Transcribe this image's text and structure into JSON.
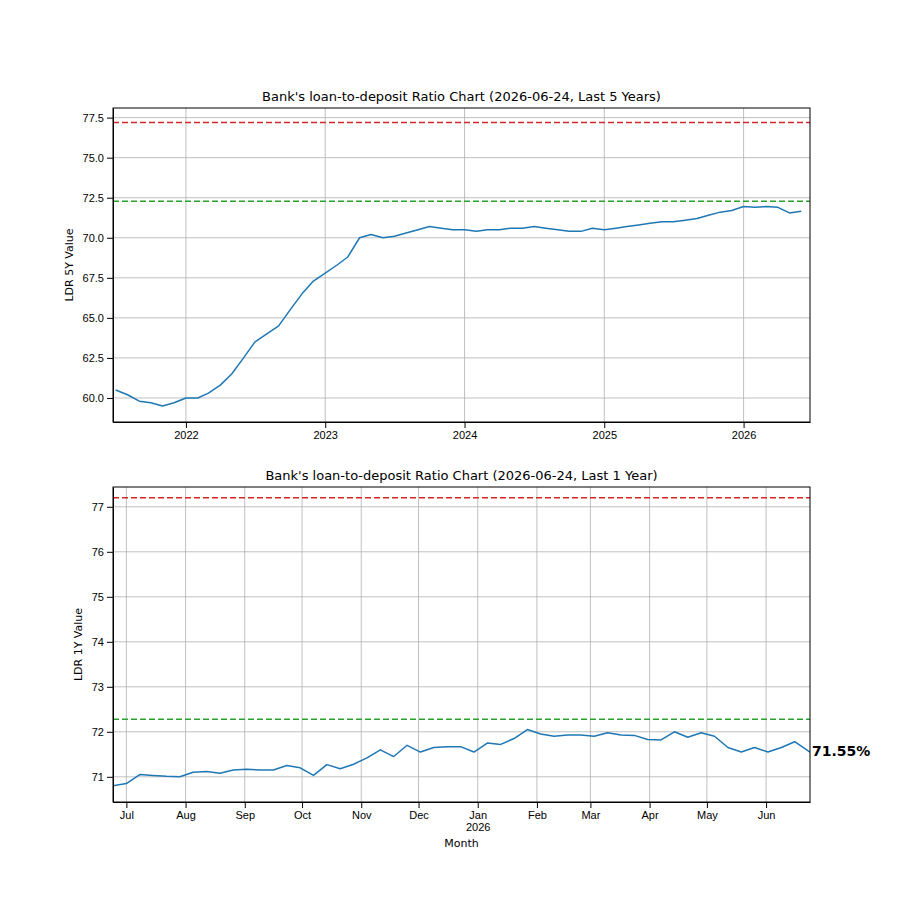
{
  "chart_data": [
    {
      "type": "line",
      "title": "Bank's loan-to-deposit Ratio Chart (2026-06-24, Last 5 Years)",
      "y_label": "LDR 5Y Value",
      "color": "#1f77b4",
      "grid": true,
      "xlim": [
        "2021-06-24",
        "2026-06-24"
      ],
      "ylim": [
        58.5,
        78.1
      ],
      "xticks": [
        {
          "value": "2022",
          "label": "2022"
        },
        {
          "value": "2023",
          "label": "2023"
        },
        {
          "value": "2024",
          "label": "2024"
        },
        {
          "value": "2025",
          "label": "2025"
        },
        {
          "value": "2026",
          "label": "2026"
        }
      ],
      "yticks": [
        {
          "value": 60,
          "label": "60.0"
        },
        62.5,
        {
          "value": 65,
          "label": "65.0"
        },
        67.5,
        {
          "value": 70,
          "label": "70.0"
        },
        72.5,
        {
          "value": 75,
          "label": "75.0"
        },
        77.5
      ],
      "hlines": [
        {
          "value": 77.2,
          "color": "#d62728",
          "line_style": "dashed"
        },
        {
          "value": 72.28,
          "color": "#2ca02c",
          "line_style": "dashed"
        }
      ],
      "x": [
        "2021-07",
        "2021-08",
        "2021-09",
        "2021-10",
        "2021-11",
        "2021-12",
        "2022-01",
        "2022-02",
        "2022-03",
        "2022-04",
        "2022-05",
        "2022-06",
        "2022-07",
        "2022-08",
        "2022-09",
        "2022-10",
        "2022-11",
        "2022-12",
        "2023-01",
        "2023-02",
        "2023-03",
        "2023-04",
        "2023-05",
        "2023-06",
        "2023-07",
        "2023-08",
        "2023-09",
        "2023-10",
        "2023-11",
        "2023-12",
        "2024-01",
        "2024-02",
        "2024-03",
        "2024-04",
        "2024-05",
        "2024-06",
        "2024-07",
        "2024-08",
        "2024-09",
        "2024-10",
        "2024-11",
        "2024-12",
        "2025-01",
        "2025-02",
        "2025-03",
        "2025-04",
        "2025-05",
        "2025-06",
        "2025-07",
        "2025-08",
        "2025-09",
        "2025-10",
        "2025-11",
        "2025-12",
        "2026-01",
        "2026-02",
        "2026-03",
        "2026-04",
        "2026-05",
        "2026-06"
      ],
      "values": [
        60.5,
        60.2,
        59.8,
        59.7,
        59.5,
        59.7,
        60.0,
        60.0,
        60.3,
        60.8,
        61.5,
        62.5,
        63.5,
        64.0,
        64.5,
        65.5,
        66.5,
        67.3,
        67.8,
        68.3,
        68.8,
        70.0,
        70.2,
        70.0,
        70.1,
        70.3,
        70.5,
        70.7,
        70.6,
        70.5,
        70.5,
        70.4,
        70.5,
        70.5,
        70.6,
        70.6,
        70.7,
        70.6,
        70.5,
        70.4,
        70.4,
        70.6,
        70.5,
        70.6,
        70.7,
        70.8,
        70.9,
        71.0,
        71.0,
        71.1,
        71.2,
        71.4,
        71.6,
        71.7,
        71.95,
        71.9,
        71.95,
        71.9,
        71.55,
        71.65
      ]
    },
    {
      "type": "line",
      "title": "Bank's loan-to-deposit Ratio Chart (2026-06-24, Last 1 Year)",
      "y_label": "LDR 1Y Value",
      "x_label": "Month",
      "color": "#1f77b4",
      "grid": true,
      "xlim": [
        "2025-06-24",
        "2026-06-24"
      ],
      "ylim": [
        70.44,
        77.44
      ],
      "xticks": [
        {
          "value": "2025-07",
          "label": "Jul"
        },
        {
          "value": "2025-08",
          "label": "Aug"
        },
        {
          "value": "2025-09",
          "label": "Sep"
        },
        {
          "value": "2025-10",
          "label": "Oct"
        },
        {
          "value": "2025-11",
          "label": "Nov"
        },
        {
          "value": "2025-12",
          "label": "Dec"
        },
        {
          "value": "2026-01",
          "label": "Jan\n2026"
        },
        {
          "value": "2026-02",
          "label": "Feb"
        },
        {
          "value": "2026-03",
          "label": "Mar"
        },
        {
          "value": "2026-04",
          "label": "Apr"
        },
        {
          "value": "2026-05",
          "label": "May"
        },
        {
          "value": "2026-06",
          "label": "Jun"
        }
      ],
      "yticks": [
        71,
        72,
        73,
        74,
        75,
        76,
        77
      ],
      "hlines": [
        {
          "value": 77.2,
          "color": "#d62728",
          "line_style": "dashed"
        },
        {
          "value": 72.28,
          "color": "#2ca02c",
          "line_style": "dashed"
        }
      ],
      "annotations": [
        {
          "text": "71.55%",
          "x": "2026-06-24",
          "y": 71.55
        }
      ],
      "x": [
        "2025-06-24",
        "2025-07-01",
        "2025-07-08",
        "2025-07-15",
        "2025-07-22",
        "2025-07-29",
        "2025-08-05",
        "2025-08-12",
        "2025-08-19",
        "2025-08-26",
        "2025-09-02",
        "2025-09-09",
        "2025-09-16",
        "2025-09-23",
        "2025-09-30",
        "2025-10-07",
        "2025-10-14",
        "2025-10-21",
        "2025-10-28",
        "2025-11-04",
        "2025-11-11",
        "2025-11-18",
        "2025-11-25",
        "2025-12-02",
        "2025-12-09",
        "2025-12-16",
        "2025-12-23",
        "2025-12-30",
        "2026-01-06",
        "2026-01-13",
        "2026-01-20",
        "2026-01-27",
        "2026-02-03",
        "2026-02-10",
        "2026-02-17",
        "2026-02-24",
        "2026-03-03",
        "2026-03-10",
        "2026-03-17",
        "2026-03-24",
        "2026-03-31",
        "2026-04-07",
        "2026-04-14",
        "2026-04-21",
        "2026-04-28",
        "2026-05-05",
        "2026-05-12",
        "2026-05-19",
        "2026-05-26",
        "2026-06-02",
        "2026-06-09",
        "2026-06-16",
        "2026-06-24"
      ],
      "values": [
        70.8,
        70.85,
        71.05,
        71.03,
        71.01,
        71.0,
        71.1,
        71.12,
        71.08,
        71.15,
        71.17,
        71.15,
        71.15,
        71.25,
        71.2,
        71.03,
        71.27,
        71.18,
        71.28,
        71.42,
        71.6,
        71.45,
        71.7,
        71.55,
        71.65,
        71.67,
        71.67,
        71.55,
        71.75,
        71.72,
        71.85,
        72.05,
        71.95,
        71.9,
        71.93,
        71.93,
        71.9,
        71.98,
        71.93,
        71.92,
        71.83,
        71.82,
        72.0,
        71.88,
        71.98,
        71.9,
        71.65,
        71.55,
        71.65,
        71.55,
        71.65,
        71.78,
        71.55
      ]
    }
  ]
}
